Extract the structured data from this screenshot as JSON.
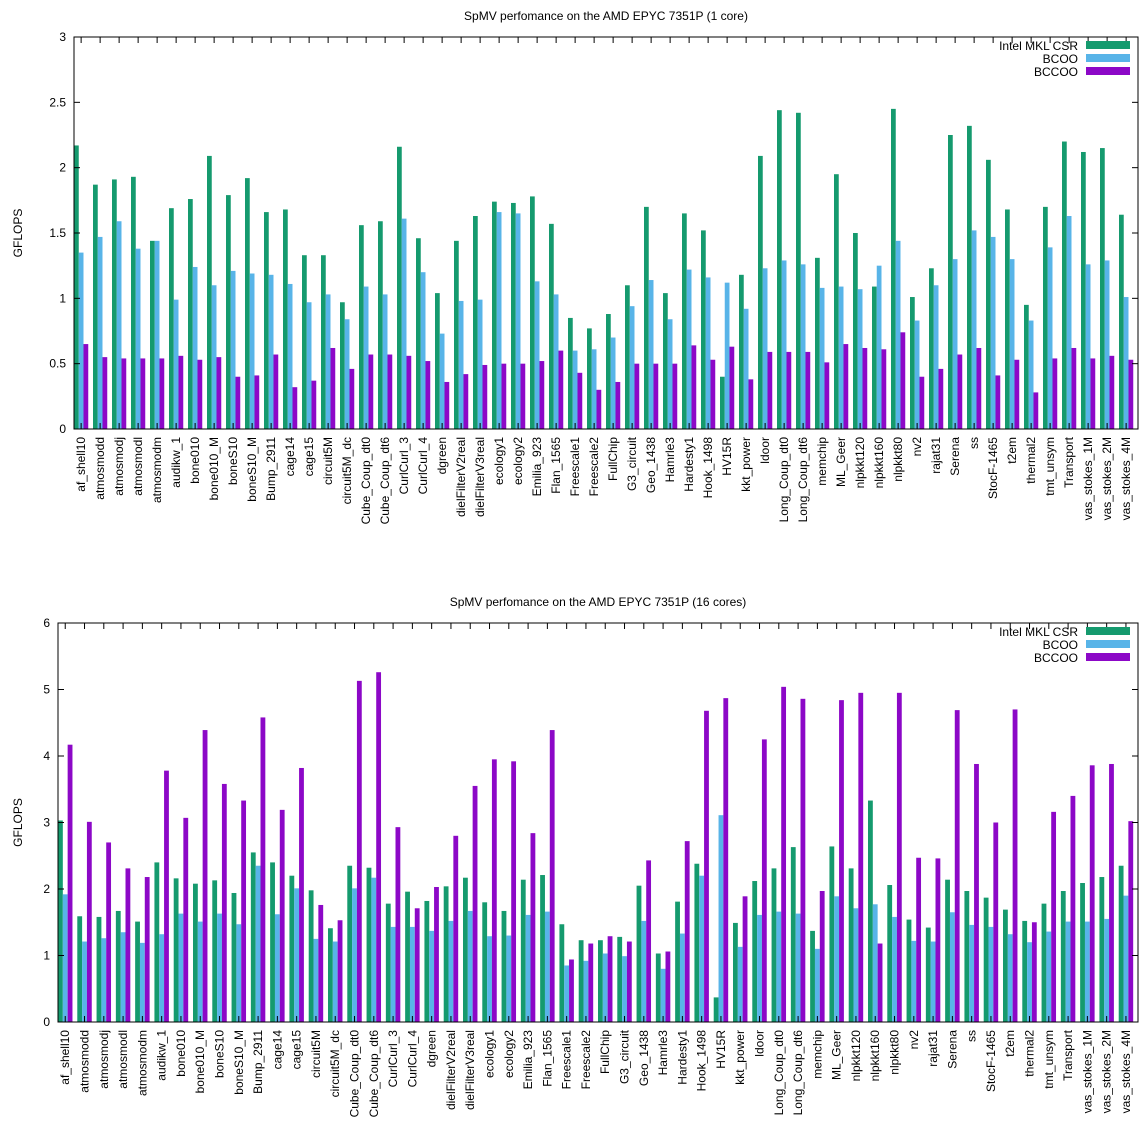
{
  "colors": {
    "mkl": "#159a6e",
    "bcoo": "#58b4e8",
    "bccoo": "#8c08c7"
  },
  "chart_data": [
    {
      "type": "bar",
      "title": "SpMV perfomance on the AMD EPYC 7351P (1 core)",
      "xlabel": "",
      "ylabel": "GFLOPS",
      "ylim": [
        0,
        3
      ],
      "yticks": [
        "0",
        "0.5",
        "1",
        "1.5",
        "2",
        "2.5",
        "3"
      ],
      "grid": false,
      "legend_position": "top-right",
      "categories": [
        "af_shell10",
        "atmosmodd",
        "atmosmodj",
        "atmosmodl",
        "atmosmodm",
        "audikw_1",
        "bone010",
        "bone010_M",
        "boneS10",
        "boneS10_M",
        "Bump_2911",
        "cage14",
        "cage15",
        "circuit5M",
        "circuit5M_dc",
        "Cube_Coup_dt0",
        "Cube_Coup_dt6",
        "CurlCurl_3",
        "CurlCurl_4",
        "dgreen",
        "dielFilterV2real",
        "dielFilterV3real",
        "ecology1",
        "ecology2",
        "Emilia_923",
        "Flan_1565",
        "Freescale1",
        "Freescale2",
        "FullChip",
        "G3_circuit",
        "Geo_1438",
        "Hamrle3",
        "Hardesty1",
        "Hook_1498",
        "HV15R",
        "kkt_power",
        "ldoor",
        "Long_Coup_dt0",
        "Long_Coup_dt6",
        "memchip",
        "ML_Geer",
        "nlpkkt120",
        "nlpkkt160",
        "nlpkkt80",
        "nv2",
        "rajat31",
        "Serena",
        "ss",
        "StocF-1465",
        "t2em",
        "thermal2",
        "tmt_unsym",
        "Transport",
        "vas_stokes_1M",
        "vas_stokes_2M",
        "vas_stokes_4M"
      ],
      "series": [
        {
          "name": "Intel MKL CSR",
          "values": [
            2.17,
            1.87,
            1.91,
            1.93,
            1.44,
            1.69,
            1.76,
            2.09,
            1.79,
            1.92,
            1.66,
            1.68,
            1.33,
            1.33,
            0.97,
            1.56,
            1.59,
            2.16,
            1.46,
            1.04,
            1.44,
            1.63,
            1.74,
            1.73,
            1.78,
            1.57,
            0.85,
            0.77,
            0.88,
            1.1,
            1.7,
            1.04,
            1.65,
            1.52,
            0.4,
            1.18,
            2.09,
            2.44,
            2.42,
            1.31,
            1.95,
            1.5,
            1.09,
            2.45,
            1.01,
            1.23,
            2.25,
            2.32,
            2.06,
            1.68,
            0.95,
            1.7,
            2.2,
            2.12,
            2.15,
            1.64
          ]
        },
        {
          "name": "BCOO",
          "values": [
            1.35,
            1.47,
            1.59,
            1.38,
            1.44,
            0.99,
            1.24,
            1.1,
            1.21,
            1.19,
            1.18,
            1.11,
            0.97,
            1.03,
            0.84,
            1.09,
            1.03,
            1.61,
            1.2,
            0.73,
            0.98,
            0.99,
            1.66,
            1.65,
            1.13,
            1.03,
            0.6,
            0.61,
            0.7,
            0.94,
            1.14,
            0.84,
            1.22,
            1.16,
            1.12,
            0.92,
            1.23,
            1.29,
            1.26,
            1.08,
            1.09,
            1.07,
            1.25,
            1.44,
            0.83,
            1.1,
            1.3,
            1.52,
            1.47,
            1.3,
            0.83,
            1.39,
            1.63,
            1.26,
            1.29,
            1.01
          ]
        },
        {
          "name": "BCCOO",
          "values": [
            0.65,
            0.55,
            0.54,
            0.54,
            0.54,
            0.56,
            0.53,
            0.55,
            0.4,
            0.41,
            0.57,
            0.32,
            0.37,
            0.62,
            0.46,
            0.57,
            0.57,
            0.56,
            0.52,
            0.36,
            0.42,
            0.49,
            0.5,
            0.5,
            0.52,
            0.6,
            0.43,
            0.3,
            0.36,
            0.5,
            0.5,
            0.5,
            0.64,
            0.53,
            0.63,
            0.38,
            0.59,
            0.59,
            0.59,
            0.51,
            0.65,
            0.62,
            0.61,
            0.74,
            0.4,
            0.46,
            0.57,
            0.62,
            0.41,
            0.53,
            0.28,
            0.54,
            0.62,
            0.54,
            0.56,
            0.53
          ]
        }
      ]
    },
    {
      "type": "bar",
      "title": "SpMV perfomance on the AMD EPYC 7351P (16 cores)",
      "xlabel": "",
      "ylabel": "GFLOPS",
      "ylim": [
        0,
        6
      ],
      "yticks": [
        "0",
        "1",
        "2",
        "3",
        "4",
        "5",
        "6"
      ],
      "grid": false,
      "legend_position": "top-right",
      "categories": [
        "af_shell10",
        "atmosmodd",
        "atmosmodj",
        "atmosmodl",
        "atmosmodm",
        "audikw_1",
        "bone010",
        "bone010_M",
        "boneS10",
        "boneS10_M",
        "Bump_2911",
        "cage14",
        "cage15",
        "circuit5M",
        "circuit5M_dc",
        "Cube_Coup_dt0",
        "Cube_Coup_dt6",
        "CurlCurl_3",
        "CurlCurl_4",
        "dgreen",
        "dielFilterV2real",
        "dielFilterV3real",
        "ecology1",
        "ecology2",
        "Emilia_923",
        "Flan_1565",
        "Freescale1",
        "Freescale2",
        "FullChip",
        "G3_circuit",
        "Geo_1438",
        "Hamrle3",
        "Hardesty1",
        "Hook_1498",
        "HV15R",
        "kkt_power",
        "ldoor",
        "Long_Coup_dt0",
        "Long_Coup_dt6",
        "memchip",
        "ML_Geer",
        "nlpkkt120",
        "nlpkkt160",
        "nlpkkt80",
        "nv2",
        "rajat31",
        "Serena",
        "ss",
        "StocF-1465",
        "t2em",
        "thermal2",
        "tmt_unsym",
        "Transport",
        "vas_stokes_1M",
        "vas_stokes_2M",
        "vas_stokes_4M"
      ],
      "series": [
        {
          "name": "Intel MKL CSR",
          "values": [
            3.03,
            1.59,
            1.58,
            1.67,
            1.51,
            2.4,
            2.16,
            2.08,
            2.13,
            1.94,
            2.55,
            2.4,
            2.2,
            1.98,
            1.41,
            2.35,
            2.32,
            1.78,
            1.96,
            1.82,
            2.04,
            2.17,
            1.8,
            1.67,
            2.14,
            2.21,
            1.47,
            1.23,
            1.23,
            1.28,
            2.05,
            1.03,
            1.81,
            2.38,
            0.37,
            1.49,
            2.12,
            2.31,
            2.63,
            1.37,
            2.64,
            2.31,
            3.33,
            2.06,
            1.54,
            1.42,
            2.14,
            1.97,
            1.87,
            1.69,
            1.52,
            1.78,
            1.97,
            2.09,
            2.18,
            2.35
          ]
        },
        {
          "name": "BCOO",
          "values": [
            1.92,
            1.21,
            1.26,
            1.35,
            1.19,
            1.32,
            1.63,
            1.51,
            1.63,
            1.47,
            2.35,
            1.62,
            2.01,
            1.25,
            1.21,
            2.01,
            2.17,
            1.43,
            1.43,
            1.37,
            1.52,
            1.67,
            1.29,
            1.3,
            1.61,
            1.66,
            0.85,
            0.92,
            1.03,
            0.99,
            1.52,
            0.8,
            1.33,
            2.2,
            3.11,
            1.13,
            1.61,
            1.66,
            1.63,
            1.1,
            1.89,
            1.71,
            1.77,
            1.58,
            1.22,
            1.21,
            1.65,
            1.46,
            1.43,
            1.32,
            1.2,
            1.36,
            1.51,
            1.51,
            1.55,
            1.9
          ]
        },
        {
          "name": "BCCOO",
          "values": [
            4.17,
            3.01,
            2.7,
            2.31,
            2.18,
            3.78,
            3.07,
            4.39,
            3.58,
            3.33,
            4.58,
            3.19,
            3.82,
            1.76,
            1.53,
            5.13,
            5.26,
            2.93,
            1.71,
            2.03,
            2.8,
            3.55,
            3.95,
            3.92,
            2.84,
            4.39,
            0.94,
            1.18,
            1.29,
            1.21,
            2.43,
            1.06,
            2.72,
            4.68,
            4.87,
            1.89,
            4.25,
            5.04,
            4.86,
            1.97,
            4.84,
            4.95,
            1.18,
            4.95,
            2.47,
            2.46,
            4.69,
            3.88,
            3.0,
            4.7,
            1.5,
            3.16,
            3.4,
            3.86,
            3.88,
            3.02
          ]
        }
      ]
    }
  ]
}
